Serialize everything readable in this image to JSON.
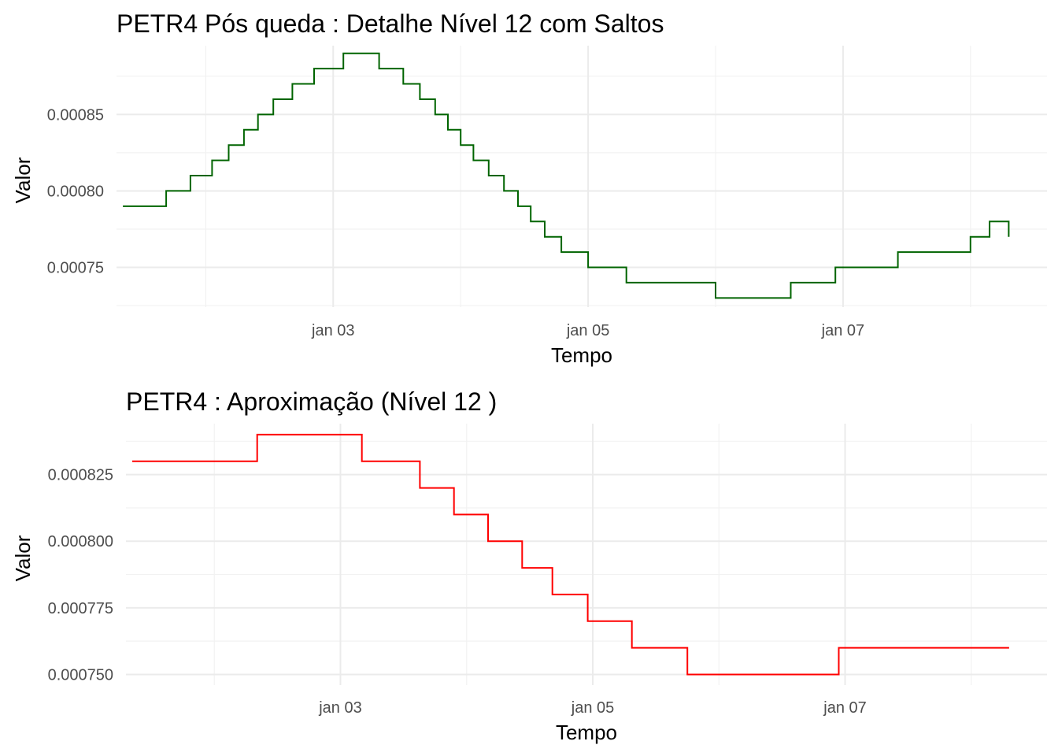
{
  "chart_data": [
    {
      "type": "line",
      "step": true,
      "title": "PETR4 Pós queda : Detalhe Nível 12 com Saltos",
      "xlabel": "Tempo",
      "ylabel": "Valor",
      "x_unit": "days",
      "xlim": [
        1.3,
        8.6
      ],
      "ylim": [
        0.000724,
        0.000895
      ],
      "x_ticks": [
        {
          "value": 3,
          "label": "jan 03"
        },
        {
          "value": 5,
          "label": "jan 05"
        },
        {
          "value": 7,
          "label": "jan 07"
        }
      ],
      "y_ticks": [
        {
          "value": 0.00075,
          "label": "0.00075"
        },
        {
          "value": 0.0008,
          "label": "0.00080"
        },
        {
          "value": 0.00085,
          "label": "0.00085"
        }
      ],
      "grid": true,
      "color": "#006400",
      "series": [
        {
          "x": [
            1.35,
            1.69,
            1.88,
            2.05,
            2.18,
            2.3,
            2.41,
            2.53,
            2.68,
            2.85,
            3.08,
            3.36,
            3.55,
            3.68,
            3.8,
            3.9,
            4.0,
            4.1,
            4.22,
            4.34,
            4.45,
            4.55,
            4.66,
            4.79,
            5.0,
            5.3,
            6.0,
            6.59,
            6.94,
            7.43,
            8.0,
            8.15,
            8.3
          ],
          "y": [
            0.00079,
            0.0008,
            0.00081,
            0.00082,
            0.00083,
            0.00084,
            0.00085,
            0.00086,
            0.00087,
            0.00088,
            0.00089,
            0.00088,
            0.00087,
            0.00086,
            0.00085,
            0.00084,
            0.00083,
            0.00082,
            0.00081,
            0.0008,
            0.00079,
            0.00078,
            0.00077,
            0.00076,
            0.00075,
            0.00074,
            0.00073,
            0.00074,
            0.00075,
            0.00076,
            0.00077,
            0.00078,
            0.00077
          ]
        }
      ]
    },
    {
      "type": "line",
      "step": true,
      "title": "PETR4 : Aproximação (Nível 12 )",
      "xlabel": "Tempo",
      "ylabel": "Valor",
      "x_unit": "days",
      "xlim": [
        1.3,
        8.6
      ],
      "ylim": [
        0.000746,
        0.0008441
      ],
      "x_ticks": [
        {
          "value": 3,
          "label": "jan 03"
        },
        {
          "value": 5,
          "label": "jan 05"
        },
        {
          "value": 7,
          "label": "jan 07"
        }
      ],
      "y_ticks": [
        {
          "value": 0.00075,
          "label": "0.000750"
        },
        {
          "value": 0.000775,
          "label": "0.000775"
        },
        {
          "value": 0.0008,
          "label": "0.000800"
        },
        {
          "value": 0.000825,
          "label": "0.000825"
        }
      ],
      "grid": true,
      "color": "#ff0000",
      "series": [
        {
          "x": [
            1.35,
            2.34,
            3.17,
            3.63,
            3.9,
            4.17,
            4.44,
            4.68,
            4.96,
            5.31,
            5.75,
            6.95,
            8.3
          ],
          "y": [
            0.00083,
            0.00084,
            0.00083,
            0.00082,
            0.00081,
            0.0008,
            0.00079,
            0.00078,
            0.00077,
            0.00076,
            0.00075,
            0.00076,
            0.00076
          ]
        }
      ]
    }
  ]
}
